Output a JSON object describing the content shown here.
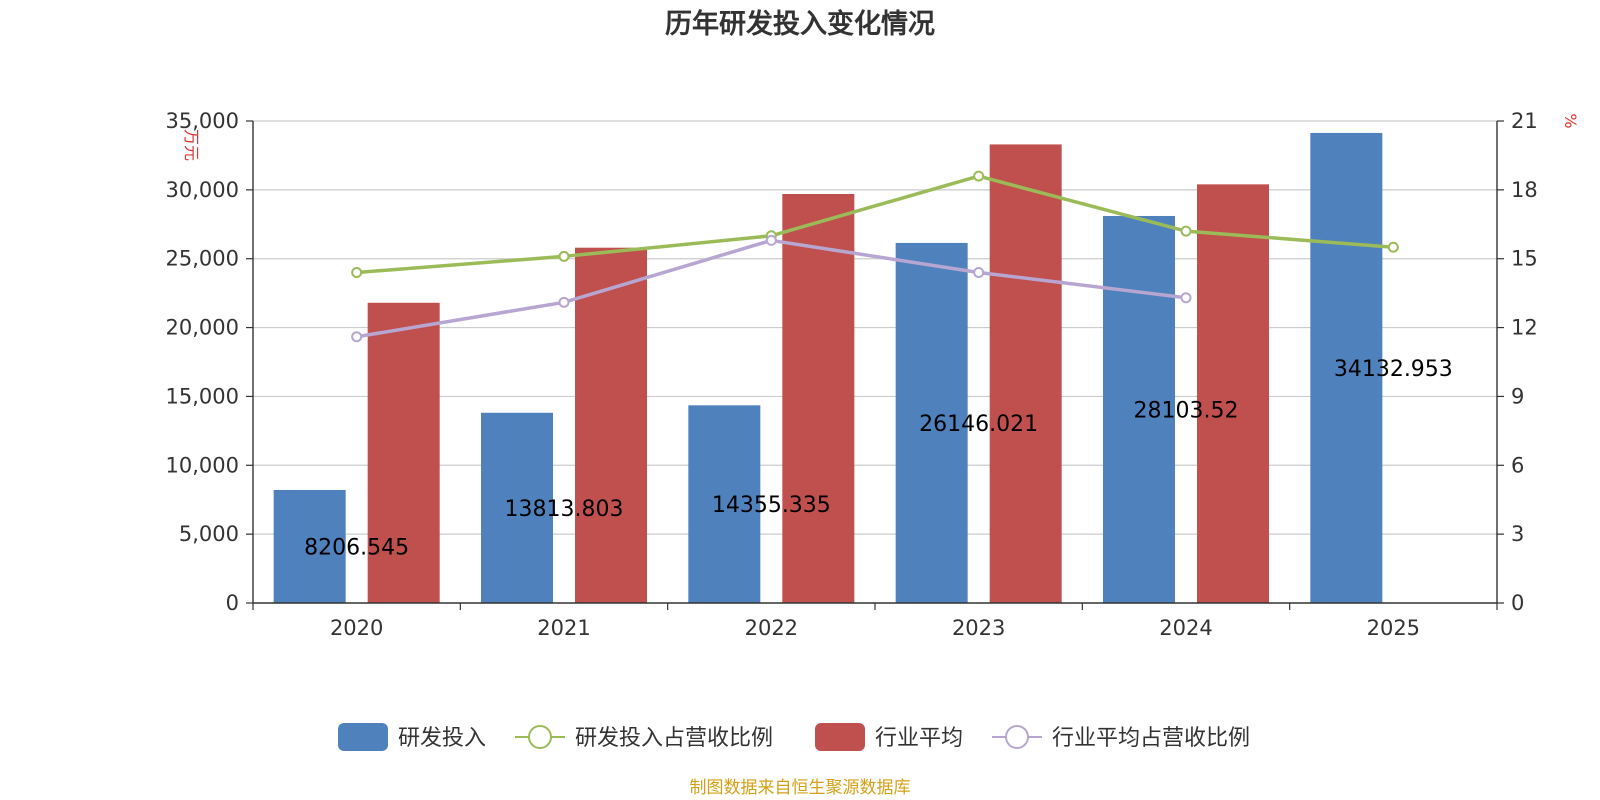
{
  "chart_data": {
    "type": "bar",
    "title": "历年研发投入变化情况",
    "categories": [
      "2020",
      "2021",
      "2022",
      "2023",
      "2024",
      "2025"
    ],
    "y_left": {
      "unit": "万元",
      "min": 0,
      "max": 35000,
      "ticks": [
        0,
        5000,
        10000,
        15000,
        20000,
        25000,
        30000,
        35000
      ],
      "tick_labels": [
        "0",
        "5,000",
        "10,000",
        "15,000",
        "20,000",
        "25,000",
        "30,000",
        "35,000"
      ]
    },
    "y_right": {
      "unit": "%",
      "min": 0,
      "max": 21,
      "ticks": [
        0,
        3,
        6,
        9,
        12,
        15,
        18,
        21
      ],
      "tick_labels": [
        "0",
        "3",
        "6",
        "9",
        "12",
        "15",
        "18",
        "21"
      ]
    },
    "grid": true,
    "legend_position": "bottom",
    "series": [
      {
        "name": "研发投入",
        "type": "bar",
        "axis": "left",
        "color": "#4f81bd",
        "values": [
          8206.545,
          13813.803,
          14355.335,
          26146.021,
          28103.52,
          34132.953
        ],
        "labels": [
          "8206.545",
          "13813.803",
          "14355.335",
          "26146.021",
          "28103.52",
          "34132.953"
        ]
      },
      {
        "name": "研发投入占营收比例",
        "type": "line",
        "axis": "right",
        "color": "#9bbb59",
        "values": [
          14.4,
          15.1,
          16.0,
          18.6,
          16.2,
          15.5
        ]
      },
      {
        "name": "行业平均",
        "type": "bar",
        "axis": "left",
        "color": "#c0504d",
        "values": [
          21800,
          25800,
          29700,
          33300,
          30400,
          null
        ]
      },
      {
        "name": "行业平均占营收比例",
        "type": "line",
        "axis": "right",
        "color": "#b7a6d1",
        "values": [
          11.6,
          13.1,
          15.8,
          14.4,
          13.3,
          null
        ]
      }
    ],
    "source": "制图数据来自恒生聚源数据库"
  }
}
